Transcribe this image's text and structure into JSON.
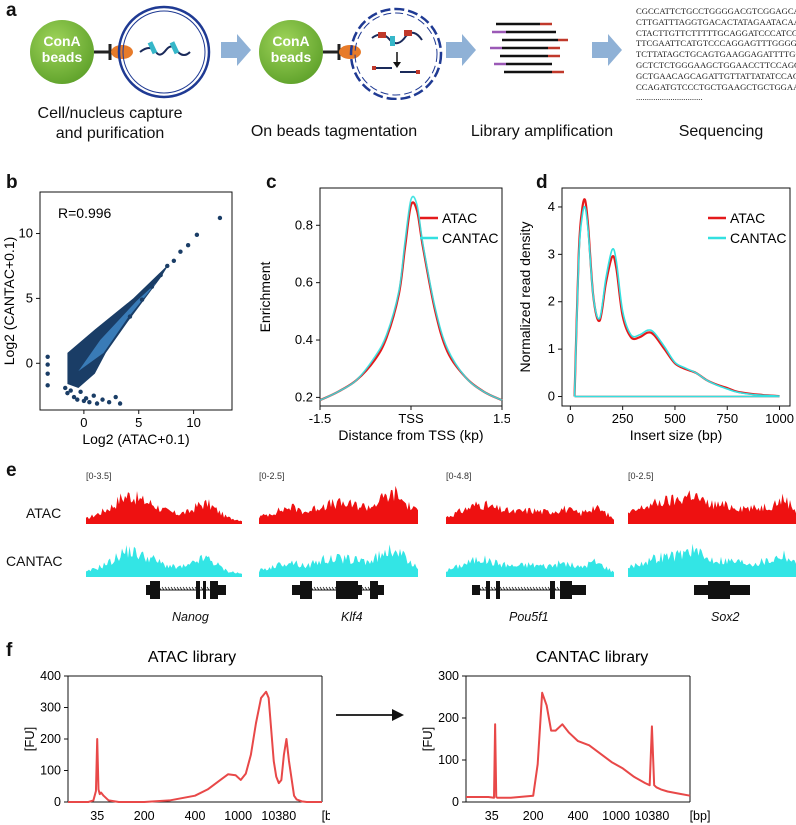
{
  "panel_labels": {
    "a": "a",
    "b": "b",
    "c": "c",
    "d": "d",
    "e": "e",
    "f": "f"
  },
  "panel_a": {
    "bead_label_line1": "ConA",
    "bead_label_line2": "beads",
    "bead2_label_line1": "ConA",
    "bead2_label_line2": "beads",
    "step1_line1": "Cell/nucleus capture",
    "step1_line2": "and purification",
    "step2": "On beads tagmentation",
    "step3": "Library amplification",
    "step4": "Sequencing",
    "sequence_lines": [
      "CGCCATTCTGCCTGGGGACGTCGGAGCAAG",
      "CTTGATTTAGGTGACACTATAGAATACAAG",
      "CTACTTGTTCTTTTTGCAGGATCCCATCGA",
      "TTCGAATTCATGTCCCAGGAGTTTGGGGTG",
      "TCTTATAGCTGCAGTGAAGGAGATTTTGGG",
      "GCTCTCTGGGAAGCTGGAACCTTCCAGGTG",
      "GCTGAACAGCAGATTGTTATTATATCCACC",
      "CCAGATGTCCCTGCTGAAGCTGCTGGAAAC",
      "..............................."
    ],
    "colors": {
      "bead": "#7dbf3c",
      "arrow": "#8fb1d6",
      "nucleus": "#1f3a93",
      "linker": "#e77b2a"
    }
  },
  "chart_data": [
    {
      "panel": "b",
      "type": "scatter",
      "xlabel": "Log2 (ATAC+0.1)",
      "ylabel": "Log2 (CANTAC+0.1)",
      "annotation": "R=0.996",
      "xlim": [
        -4,
        13.5
      ],
      "ylim": [
        -3.6,
        13.2
      ],
      "xticks": [
        "0",
        "5",
        "10"
      ],
      "yticks": [
        "0",
        "5",
        "10"
      ],
      "points": [
        [
          -3.3,
          -0.8
        ],
        [
          -3.3,
          -0.1
        ],
        [
          -3.3,
          0.5
        ],
        [
          -3.3,
          -1.7
        ],
        [
          -1.7,
          -1.9
        ],
        [
          -1.5,
          -2.3
        ],
        [
          -1.2,
          -2.1
        ],
        [
          -0.9,
          -2.6
        ],
        [
          -0.6,
          -2.8
        ],
        [
          -0.3,
          -2.2
        ],
        [
          0.0,
          -2.9
        ],
        [
          0.2,
          -2.7
        ],
        [
          0.5,
          -3.0
        ],
        [
          0.9,
          -2.5
        ],
        [
          1.2,
          -3.1
        ],
        [
          1.7,
          -2.8
        ],
        [
          2.3,
          -3.0
        ],
        [
          2.9,
          -2.6
        ],
        [
          3.3,
          -3.1
        ],
        [
          4.2,
          3.6
        ],
        [
          5.3,
          4.9
        ],
        [
          6.2,
          5.9
        ],
        [
          7.0,
          6.8
        ],
        [
          7.6,
          7.5
        ],
        [
          8.2,
          7.9
        ],
        [
          8.8,
          8.6
        ],
        [
          9.5,
          9.1
        ],
        [
          10.3,
          9.9
        ],
        [
          12.4,
          11.2
        ]
      ],
      "series_color": "#1a3d66",
      "dense_color": "#3f86c6"
    },
    {
      "panel": "c",
      "type": "line",
      "xlabel": "Distance from TSS (kp)",
      "ylabel": "Enrichment",
      "xticks": [
        "-1.5",
        "TSS",
        "1.5"
      ],
      "yticks": [
        "0.2",
        "0.4",
        "0.6",
        "0.8"
      ],
      "xlim": [
        -1.5,
        1.5
      ],
      "ylim": [
        0.17,
        0.93
      ],
      "legend_position": "top-right",
      "series": [
        {
          "name": "ATAC",
          "color": "#e41a1c",
          "x": [
            -1.5,
            -1.2,
            -0.9,
            -0.6,
            -0.4,
            -0.2,
            -0.1,
            0.0,
            0.1,
            0.2,
            0.4,
            0.6,
            0.9,
            1.2,
            1.5
          ],
          "y": [
            0.19,
            0.22,
            0.26,
            0.33,
            0.41,
            0.56,
            0.72,
            0.87,
            0.85,
            0.72,
            0.5,
            0.36,
            0.27,
            0.22,
            0.19
          ]
        },
        {
          "name": "CANTAC",
          "color": "#33e0e0",
          "x": [
            -1.5,
            -1.2,
            -0.9,
            -0.6,
            -0.4,
            -0.2,
            -0.1,
            0.0,
            0.1,
            0.2,
            0.4,
            0.6,
            0.9,
            1.2,
            1.5
          ],
          "y": [
            0.19,
            0.22,
            0.26,
            0.34,
            0.42,
            0.57,
            0.74,
            0.89,
            0.87,
            0.73,
            0.51,
            0.37,
            0.27,
            0.22,
            0.19
          ]
        }
      ]
    },
    {
      "panel": "d",
      "type": "line",
      "xlabel": "Insert size (bp)",
      "ylabel": "Normalized read density",
      "xticks": [
        "0",
        "250",
        "500",
        "750",
        "1000"
      ],
      "yticks": [
        "0",
        "1",
        "2",
        "3",
        "4"
      ],
      "xlim": [
        -40,
        1050
      ],
      "ylim": [
        -0.2,
        4.4
      ],
      "legend_position": "top-right",
      "series": [
        {
          "name": "ATAC",
          "color": "#e41a1c",
          "x": [
            20,
            40,
            55,
            70,
            85,
            110,
            140,
            170,
            200,
            220,
            250,
            290,
            330,
            370,
            400,
            450,
            500,
            550,
            600,
            650,
            700,
            750,
            800,
            900,
            1000
          ],
          "y": [
            0.0,
            3.0,
            3.9,
            4.15,
            3.6,
            2.1,
            1.6,
            2.4,
            2.95,
            2.7,
            1.7,
            1.25,
            1.25,
            1.35,
            1.3,
            1.0,
            0.7,
            0.58,
            0.5,
            0.35,
            0.25,
            0.18,
            0.1,
            0.04,
            0.01
          ]
        },
        {
          "name": "CANTAC",
          "color": "#33e0e0",
          "x": [
            20,
            40,
            55,
            70,
            85,
            110,
            140,
            170,
            200,
            220,
            250,
            290,
            330,
            370,
            400,
            450,
            500,
            550,
            600,
            650,
            700,
            750,
            800,
            900,
            1000
          ],
          "y": [
            0.0,
            2.9,
            3.75,
            4.0,
            3.5,
            2.1,
            1.65,
            2.5,
            3.1,
            2.85,
            1.8,
            1.3,
            1.3,
            1.4,
            1.35,
            1.05,
            0.72,
            0.6,
            0.5,
            0.35,
            0.24,
            0.16,
            0.09,
            0.03,
            0.01
          ]
        }
      ]
    },
    {
      "panel": "f-left",
      "type": "line",
      "title": "ATAC library",
      "ylabel": "[FU]",
      "xunit": "[bp]",
      "xticks": [
        "35",
        "200",
        "400",
        "1000",
        "10380"
      ],
      "yticks": [
        "0",
        "100",
        "200",
        "300",
        "400"
      ],
      "ylim": [
        0,
        400
      ],
      "color": "#e84848",
      "x": [
        0.0,
        0.08,
        0.1,
        0.11,
        0.115,
        0.12,
        0.125,
        0.13,
        0.14,
        0.16,
        0.2,
        0.3,
        0.4,
        0.5,
        0.55,
        0.6,
        0.63,
        0.66,
        0.68,
        0.7,
        0.72,
        0.74,
        0.76,
        0.78,
        0.79,
        0.8,
        0.81,
        0.82,
        0.83,
        0.84,
        0.85,
        0.86,
        0.87,
        0.89,
        0.9,
        0.92,
        0.94,
        1.0
      ],
      "y": [
        0,
        0,
        5,
        35,
        200,
        40,
        25,
        30,
        20,
        5,
        0,
        0,
        5,
        20,
        40,
        70,
        88,
        85,
        70,
        90,
        150,
        250,
        330,
        350,
        330,
        230,
        130,
        80,
        60,
        70,
        150,
        200,
        130,
        20,
        8,
        2,
        0,
        0
      ]
    },
    {
      "panel": "f-right",
      "type": "line",
      "title": "CANTAC library",
      "ylabel": "[FU]",
      "xunit": "[bp]",
      "xticks": [
        "35",
        "200",
        "400",
        "1000",
        "10380"
      ],
      "yticks": [
        "0",
        "100",
        "200",
        "300"
      ],
      "ylim": [
        0,
        300
      ],
      "color": "#e84848",
      "x": [
        0.0,
        0.1,
        0.125,
        0.13,
        0.135,
        0.14,
        0.2,
        0.3,
        0.32,
        0.34,
        0.36,
        0.38,
        0.4,
        0.43,
        0.46,
        0.5,
        0.55,
        0.6,
        0.65,
        0.7,
        0.75,
        0.8,
        0.82,
        0.83,
        0.84,
        0.85,
        0.87,
        0.9,
        0.95,
        1.0
      ],
      "y": [
        12,
        12,
        10,
        185,
        12,
        10,
        10,
        15,
        90,
        260,
        230,
        170,
        170,
        185,
        165,
        145,
        135,
        115,
        95,
        80,
        60,
        45,
        40,
        180,
        40,
        35,
        30,
        25,
        20,
        15
      ]
    }
  ],
  "panel_e": {
    "track_atac": "ATAC",
    "track_cantac": "CANTAC",
    "atac_color": "#ee1111",
    "cantac_color": "#33e5e5",
    "loci": [
      {
        "range": "[0-3.5]",
        "gene": "Nanog"
      },
      {
        "range": "[0-2.5]",
        "gene": "Klf4"
      },
      {
        "range": "[0-4.8]",
        "gene": "Pou5f1"
      },
      {
        "range": "[0-2.5]",
        "gene": "Sox2"
      }
    ]
  }
}
